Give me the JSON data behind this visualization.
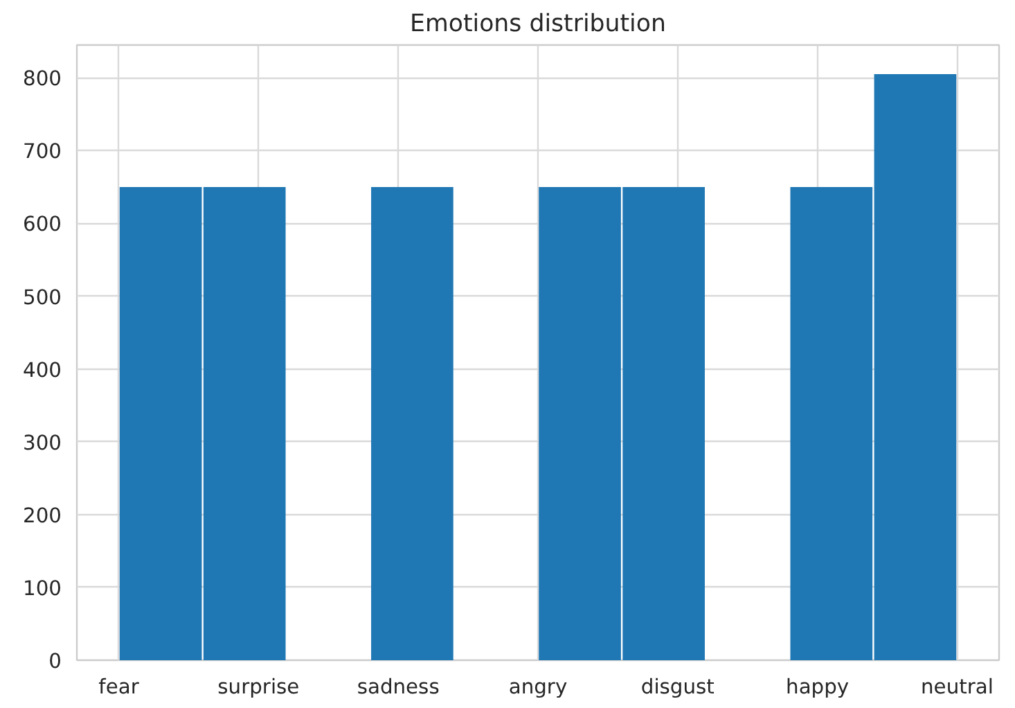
{
  "chart_data": {
    "type": "bar",
    "title": "Emotions distribution",
    "categories": [
      null,
      null,
      null,
      null,
      null,
      null,
      null,
      null,
      null,
      null
    ],
    "values": [
      650,
      650,
      0,
      650,
      0,
      650,
      650,
      0,
      650,
      805
    ],
    "color": "#1f77b4",
    "annotations": [
      "fear",
      "surprise",
      "sadness",
      "angry",
      "disgust",
      "happy",
      "neutral"
    ],
    "ylim": [
      0,
      845
    ],
    "yticks": [
      0,
      100,
      200,
      300,
      400,
      500,
      600,
      700,
      800
    ],
    "grid": true
  }
}
